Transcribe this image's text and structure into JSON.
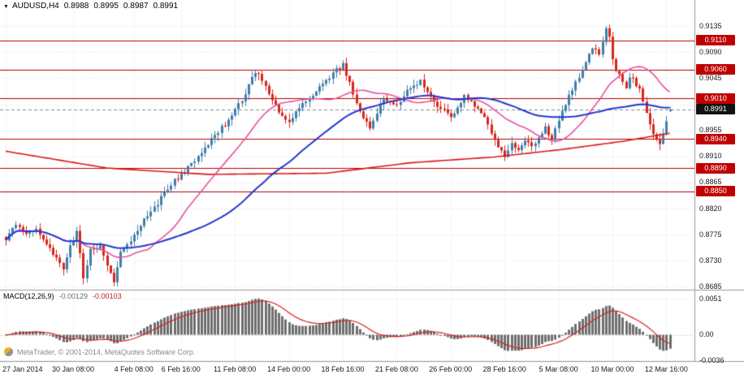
{
  "header": {
    "marker_icon": "▼",
    "symbol_period": "AUDUSD,H4",
    "open": "0.8988",
    "high": "0.8995",
    "low": "0.8987",
    "close": "0.8991"
  },
  "macd_panel": {
    "label": "MACD(12,26,9)",
    "main_value": "-0.00129",
    "signal_value": "-0.00103"
  },
  "footer": {
    "credit": "MetaTrader, © 2001-2014, MetaQuotes Software Corp."
  },
  "chart_data": {
    "type": "candlestick+macd",
    "title": "AUDUSD,H4",
    "symbol": "AUDUSD",
    "timeframe": "H4",
    "colors": {
      "background": "#ffffff",
      "grid": "#e3e3e3",
      "grid_zero": "#bdbdbd",
      "bull": "#3f7faa",
      "bear": "#d8261a",
      "level_line": "#b70000",
      "level_badge": "#c00000",
      "current_badge": "#111111",
      "current_line": "#888888",
      "ma_fast": "#e8539f",
      "ma_slow": "#2438cf",
      "ma_long": "#e01515",
      "macd_histogram": "#6e6e6e",
      "macd_signal": "#d62020",
      "separator": "#999999",
      "axis_text": "#1a1a1a"
    },
    "price_axis": {
      "visible_min": 0.868,
      "visible_max": 0.918,
      "tick_step": 0.0045,
      "grid_start": 0.8685,
      "grid_end": 0.9135,
      "ticks": [
        "0.9135",
        "0.9090",
        "0.9045",
        "0.8955",
        "0.8910",
        "0.8865",
        "0.8820",
        "0.8775",
        "0.8730",
        "0.8685"
      ]
    },
    "levels": [
      0.911,
      0.906,
      0.901,
      0.894,
      0.889,
      0.885
    ],
    "level_labels": [
      "0.9110",
      "0.9060",
      "0.9010",
      "0.8940",
      "0.8890",
      "0.8850"
    ],
    "current_price": 0.8991,
    "current_price_label": "0.8991",
    "time_axis": {
      "labels": [
        {
          "text": "27 Jan 2014",
          "index": 0
        },
        {
          "text": "30 Jan 08:00",
          "index": 20
        },
        {
          "text": "4 Feb 08:00",
          "index": 38
        },
        {
          "text": "6 Feb 16:00",
          "index": 52
        },
        {
          "text": "11 Feb 08:00",
          "index": 68
        },
        {
          "text": "14 Feb 00:00",
          "index": 84
        },
        {
          "text": "18 Feb 16:00",
          "index": 100
        },
        {
          "text": "21 Feb 08:00",
          "index": 116
        },
        {
          "text": "26 Feb 00:00",
          "index": 132
        },
        {
          "text": "28 Feb 16:00",
          "index": 148
        },
        {
          "text": "5 Mar 08:00",
          "index": 164
        },
        {
          "text": "10 Mar 00:00",
          "index": 180
        },
        {
          "text": "12 Mar 16:00",
          "index": 196
        }
      ]
    },
    "candles": {
      "count": 198,
      "seed": 9,
      "noise": 0.0009,
      "wick": 0.0011,
      "last": {
        "open": 0.8988,
        "high": 0.8995,
        "low": 0.8987,
        "close": 0.8991
      },
      "close_waypoints": [
        [
          0,
          0.8768
        ],
        [
          3,
          0.879
        ],
        [
          6,
          0.8773
        ],
        [
          9,
          0.8788
        ],
        [
          12,
          0.876
        ],
        [
          15,
          0.8735
        ],
        [
          17,
          0.8715
        ],
        [
          19,
          0.8755
        ],
        [
          21,
          0.878
        ],
        [
          23,
          0.8702
        ],
        [
          25,
          0.8748
        ],
        [
          28,
          0.8758
        ],
        [
          30,
          0.872
        ],
        [
          32,
          0.8692
        ],
        [
          34,
          0.875
        ],
        [
          38,
          0.8772
        ],
        [
          42,
          0.8808
        ],
        [
          46,
          0.8838
        ],
        [
          50,
          0.8868
        ],
        [
          54,
          0.889
        ],
        [
          58,
          0.8918
        ],
        [
          62,
          0.8948
        ],
        [
          66,
          0.8972
        ],
        [
          69,
          0.8998
        ],
        [
          72,
          0.9032
        ],
        [
          74,
          0.9058
        ],
        [
          76,
          0.9042
        ],
        [
          79,
          0.9005
        ],
        [
          82,
          0.8978
        ],
        [
          84,
          0.8965
        ],
        [
          86,
          0.899
        ],
        [
          90,
          0.9012
        ],
        [
          94,
          0.9035
        ],
        [
          98,
          0.9058
        ],
        [
          100,
          0.9068
        ],
        [
          102,
          0.9038
        ],
        [
          104,
          0.9002
        ],
        [
          106,
          0.8975
        ],
        [
          108,
          0.8958
        ],
        [
          110,
          0.8988
        ],
        [
          112,
          0.9012
        ],
        [
          114,
          0.9002
        ],
        [
          116,
          0.8998
        ],
        [
          120,
          0.9028
        ],
        [
          123,
          0.9042
        ],
        [
          126,
          0.9012
        ],
        [
          129,
          0.8992
        ],
        [
          132,
          0.8976
        ],
        [
          134,
          0.8996
        ],
        [
          136,
          0.9012
        ],
        [
          139,
          0.8996
        ],
        [
          142,
          0.8975
        ],
        [
          144,
          0.8952
        ],
        [
          146,
          0.8928
        ],
        [
          148,
          0.8912
        ],
        [
          150,
          0.8932
        ],
        [
          152,
          0.8918
        ],
        [
          154,
          0.894
        ],
        [
          156,
          0.8924
        ],
        [
          158,
          0.8946
        ],
        [
          160,
          0.8958
        ],
        [
          162,
          0.8942
        ],
        [
          164,
          0.8976
        ],
        [
          166,
          0.9002
        ],
        [
          168,
          0.9022
        ],
        [
          170,
          0.9048
        ],
        [
          172,
          0.9072
        ],
        [
          174,
          0.9098
        ],
        [
          176,
          0.9088
        ],
        [
          178,
          0.9128
        ],
        [
          179,
          0.9118
        ],
        [
          180,
          0.9082
        ],
        [
          181,
          0.9055
        ],
        [
          182,
          0.9048
        ],
        [
          183,
          0.9035
        ],
        [
          184,
          0.9028
        ],
        [
          185,
          0.9042
        ],
        [
          186,
          0.9048
        ],
        [
          187,
          0.9035
        ],
        [
          188,
          0.9028
        ],
        [
          189,
          0.9008
        ],
        [
          190,
          0.8985
        ],
        [
          191,
          0.8962
        ],
        [
          192,
          0.8948
        ],
        [
          193,
          0.8938
        ],
        [
          194,
          0.8928
        ],
        [
          195,
          0.8952
        ],
        [
          196,
          0.8972
        ],
        [
          197,
          0.8991
        ]
      ],
      "wick_overrides": [
        {
          "index": 23,
          "low": 0.8697
        },
        {
          "index": 32,
          "low": 0.8686
        },
        {
          "index": 178,
          "high": 0.9135
        },
        {
          "index": 194,
          "low": 0.8926
        }
      ]
    },
    "moving_averages": [
      {
        "name": "ma-fast",
        "kind": "sma",
        "period": 21,
        "width": 1.6
      },
      {
        "name": "ma-slow",
        "kind": "sma",
        "period": 55,
        "width": 2
      },
      {
        "name": "ma-long",
        "kind": "path",
        "width": 1.6,
        "points": [
          [
            0,
            0.8919
          ],
          [
            30,
            0.889
          ],
          [
            60,
            0.8879
          ],
          [
            95,
            0.8881
          ],
          [
            120,
            0.8899
          ],
          [
            145,
            0.8909
          ],
          [
            165,
            0.8922
          ],
          [
            183,
            0.8936
          ],
          [
            197,
            0.895
          ]
        ]
      }
    ],
    "macd": {
      "fast": 12,
      "slow": 26,
      "signal": 9,
      "scale_max": 0.0051,
      "scale_min": -0.0036,
      "displayed_main": -0.00129,
      "displayed_signal": -0.00103,
      "axis_ticks": [
        {
          "text": "0.0051",
          "value": 0.0051
        },
        {
          "text": "0.00",
          "value": 0
        },
        {
          "text": "-0.0036",
          "value": -0.0036
        }
      ]
    }
  }
}
